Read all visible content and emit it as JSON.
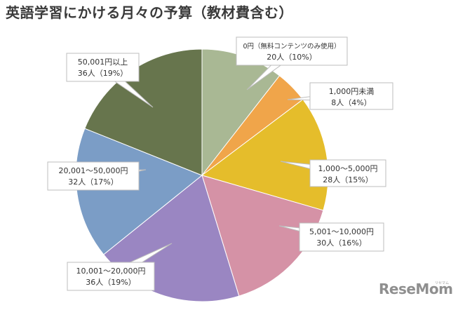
{
  "chart_data": {
    "type": "pie",
    "title": "英語学習にかける月々の予算（教材費含む）",
    "slices": [
      {
        "label": "0円（無料コンテンツのみ使用）",
        "value_label": "20人（10%）",
        "count": 20,
        "percent": 10,
        "color": "#a9b894"
      },
      {
        "label": "1,000円未満",
        "value_label": "8人（4%）",
        "count": 8,
        "percent": 4,
        "color": "#f0a54a"
      },
      {
        "label": "1,000～5,000円",
        "value_label": "28人（15%）",
        "count": 28,
        "percent": 15,
        "color": "#e5bd2b"
      },
      {
        "label": "5,001～10,000円",
        "value_label": "30人（16%）",
        "count": 30,
        "percent": 16,
        "color": "#d592a6"
      },
      {
        "label": "10,001～20,000円",
        "value_label": "36人（19%）",
        "count": 36,
        "percent": 19,
        "color": "#9a86c2"
      },
      {
        "label": "20,001～50,000円",
        "value_label": "32人（17%）",
        "count": 32,
        "percent": 17,
        "color": "#7b9dc6"
      },
      {
        "label": "50,001円以上",
        "value_label": "36人（19%）",
        "count": 36,
        "percent": 19,
        "color": "#67754d"
      }
    ]
  },
  "logo": {
    "text": "ReseMom",
    "sub": "リセマム"
  }
}
